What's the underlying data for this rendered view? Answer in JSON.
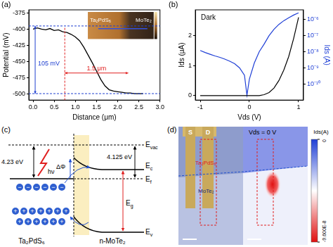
{
  "chart_data": [
    {
      "panel": "(a)",
      "type": "line",
      "x_label": "Distance (μm)",
      "y_label": "Potential (mV)",
      "x": [
        0,
        0.1,
        0.2,
        0.3,
        0.4,
        0.5,
        0.6,
        0.7,
        0.8,
        0.9,
        1.0,
        1.1,
        1.2,
        1.3,
        1.4,
        1.5,
        1.6,
        1.7,
        1.8,
        1.9,
        2.0,
        2.1,
        2.2,
        2.3,
        2.4,
        2.5,
        2.6
      ],
      "values": [
        -400,
        -398,
        -400,
        -401,
        -399,
        -402,
        -401,
        -404,
        -405,
        -408,
        -412,
        -418,
        -428,
        -440,
        -452,
        -465,
        -478,
        -488,
        -494,
        -496,
        -497,
        -498,
        -499,
        -499,
        -500,
        -500,
        -500
      ],
      "color": "#000000",
      "xlim": [
        -0.1,
        3.0
      ],
      "xticks": [
        {
          "value": 0,
          "label": "0.0"
        },
        0.5,
        {
          "value": 1,
          "label": "1.0"
        },
        1.5,
        {
          "value": 2,
          "label": "2.0"
        },
        2.5,
        {
          "value": 3,
          "label": "3.0"
        }
      ],
      "ylim": [
        -510,
        -370
      ],
      "yticks": [
        -500,
        -475,
        -450,
        -425,
        -400,
        -375
      ],
      "grid": false,
      "annotations": [
        {
          "text": "105 mV",
          "x": 0.05,
          "y1": -395,
          "y2": -500,
          "color": "#2040d0"
        },
        {
          "text": "1.5 μm",
          "x1": 0.75,
          "x2": 2.25,
          "y": -468,
          "color": "#e02020"
        }
      ],
      "inset": {
        "labels": [
          "Ta₂PdS₆",
          "MoTe₂"
        ]
      }
    },
    {
      "panel": "(b)",
      "type": "line",
      "title": "Dark",
      "x_label": "Vds (V)",
      "y_label": "Ids (μA)",
      "y2_label": "Ids (A)",
      "x": [
        -1,
        -0.9,
        -0.8,
        -0.7,
        -0.6,
        -0.5,
        -0.4,
        -0.3,
        -0.2,
        -0.1,
        -0.05,
        0,
        0.1,
        0.2,
        0.3,
        0.4,
        0.5,
        0.6,
        0.7,
        0.8,
        0.9,
        1.0
      ],
      "series": [
        {
          "color": "#000000",
          "values": [
            0,
            0,
            0,
            0,
            0,
            0,
            0,
            0,
            0,
            0,
            0,
            0,
            0,
            0,
            0.03,
            0.1,
            0.25,
            0.5,
            0.85,
            1.3,
            1.9,
            2.6
          ]
        },
        {
          "color": "#1f3fd6",
          "axis": "y2",
          "values": [
            1.2e-08,
            9e-09,
            7e-09,
            5.5e-09,
            4.5e-09,
            3.5e-09,
            2.6e-09,
            1.8e-09,
            1e-09,
            3.5e-10,
            2e-11,
            2e-10,
            2e-09,
            1e-08,
            3e-08,
            1e-07,
            2.5e-07,
            5e-07,
            8.5e-07,
            1.3e-06,
            1.9e-06,
            2.6e-06
          ]
        }
      ],
      "xlim": [
        -1.1,
        1.1
      ],
      "xticks": [
        -1,
        0,
        1
      ],
      "ylim": [
        -0.15,
        2.85
      ],
      "yticks": [
        0,
        1,
        2
      ],
      "y2lim": [
        1e-11,
        4e-06
      ],
      "y2ticks": [
        {
          "value": 1e-10,
          "label": "10⁻¹⁰"
        },
        {
          "value": 1e-09,
          "label": "10⁻⁹"
        },
        {
          "value": 1e-08,
          "label": "10⁻⁸"
        },
        {
          "value": 1e-07,
          "label": "10⁻⁷"
        },
        {
          "value": 1e-06,
          "label": "10⁻⁶"
        }
      ],
      "log": "y2",
      "grid": false
    }
  ],
  "band_diagram": {
    "panel": "(c)",
    "left_material": "Ta₂PdS₆",
    "right_material": "n-MoTe₂",
    "left_work_function": "4.23 eV",
    "right_work_function": "4.125 eV",
    "vacuum_level": {
      "symbol": "E",
      "sub": "vac"
    },
    "conduction_band": {
      "symbol": "E",
      "sub": "c"
    },
    "fermi_level": {
      "symbol": "E",
      "sub": "f"
    },
    "valence_band": {
      "symbol": "E",
      "sub": "v"
    },
    "band_gap": {
      "symbol": "E",
      "sub": "g"
    },
    "barrier": "ΔΦ",
    "photon": "hν",
    "electron": "−",
    "hole": "+"
  },
  "photocurrent_map": {
    "panel": "(d)",
    "source": "S",
    "drain": "D",
    "flake_top": "Ta₂PdS₆",
    "flake_bottom": "MoTe₂",
    "bias": "Vds = 0 V",
    "colorbar": {
      "title": "Ids(A)",
      "range": [
        -9.6e-08,
        0
      ],
      "ticks": [
        {
          "value": 0,
          "label": "0"
        },
        {
          "value": -9.6e-08,
          "label": "-9.600E-8"
        }
      ]
    }
  }
}
